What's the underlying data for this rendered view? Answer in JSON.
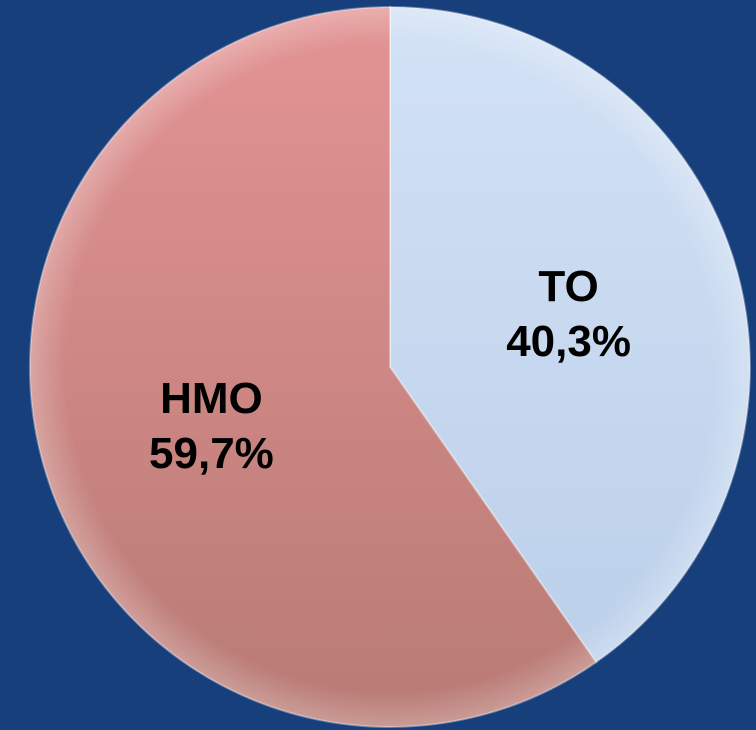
{
  "chart_data": {
    "type": "pie",
    "slices": [
      {
        "label": "TO",
        "value_text": "40,3%",
        "value": 40.3,
        "color": "#c5d8f0"
      },
      {
        "label": "HMO",
        "value_text": "59,7%",
        "value": 59.7,
        "color": "#d98a8a"
      }
    ],
    "start": "12 o'clock",
    "direction": "clockwise",
    "background": "#173f7c"
  }
}
